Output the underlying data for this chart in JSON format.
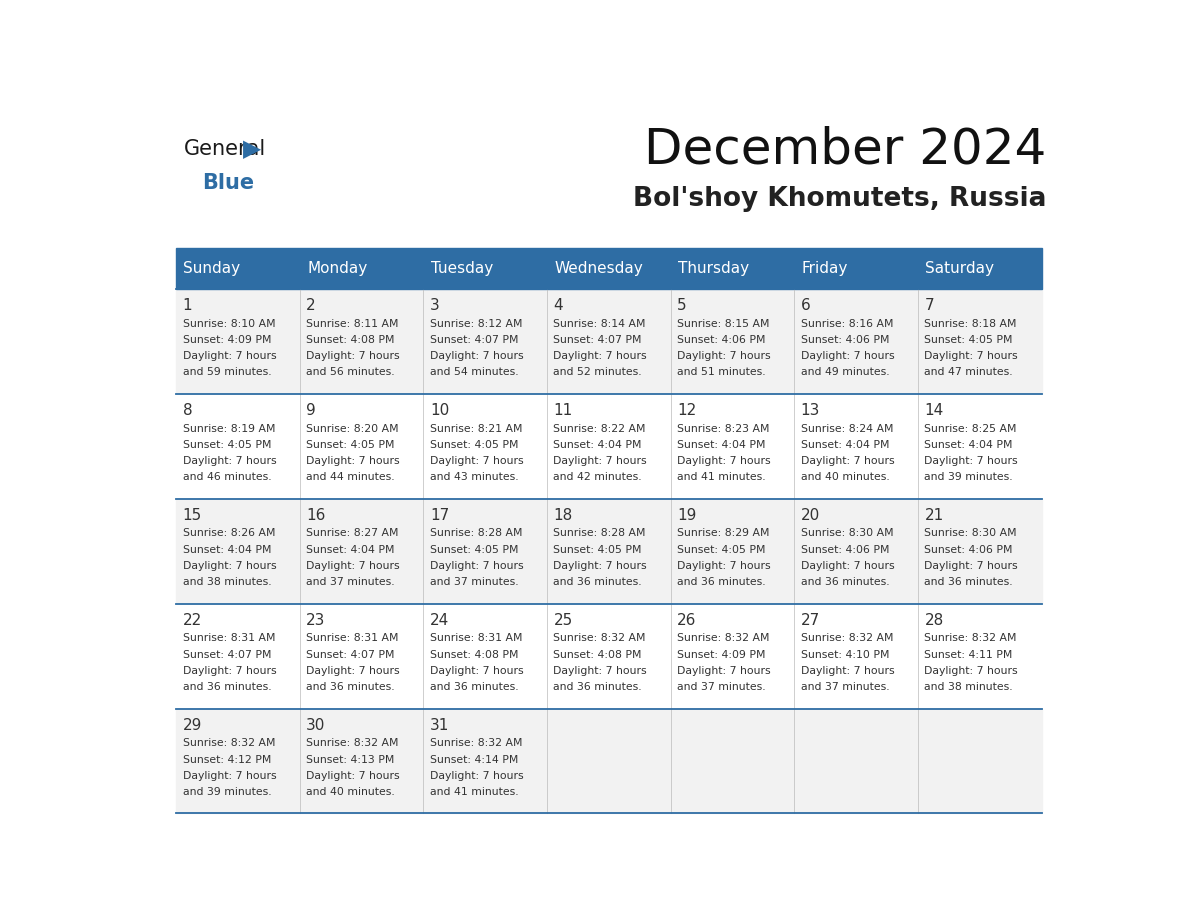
{
  "title": "December 2024",
  "subtitle": "Bol'shoy Khomutets, Russia",
  "days_of_week": [
    "Sunday",
    "Monday",
    "Tuesday",
    "Wednesday",
    "Thursday",
    "Friday",
    "Saturday"
  ],
  "header_bg": "#2E6DA4",
  "header_text": "#FFFFFF",
  "cell_bg_light": "#F2F2F2",
  "cell_bg_white": "#FFFFFF",
  "cell_text": "#333333",
  "day_num_color": "#333333",
  "line_color": "#2E6DA4",
  "logo_general_color": "#1a1a1a",
  "logo_blue_color": "#2E6DA4",
  "weeks": [
    [
      {
        "day": 1,
        "sunrise": "8:10 AM",
        "sunset": "4:09 PM",
        "dl1": "7 hours",
        "dl2": "and 59 minutes."
      },
      {
        "day": 2,
        "sunrise": "8:11 AM",
        "sunset": "4:08 PM",
        "dl1": "7 hours",
        "dl2": "and 56 minutes."
      },
      {
        "day": 3,
        "sunrise": "8:12 AM",
        "sunset": "4:07 PM",
        "dl1": "7 hours",
        "dl2": "and 54 minutes."
      },
      {
        "day": 4,
        "sunrise": "8:14 AM",
        "sunset": "4:07 PM",
        "dl1": "7 hours",
        "dl2": "and 52 minutes."
      },
      {
        "day": 5,
        "sunrise": "8:15 AM",
        "sunset": "4:06 PM",
        "dl1": "7 hours",
        "dl2": "and 51 minutes."
      },
      {
        "day": 6,
        "sunrise": "8:16 AM",
        "sunset": "4:06 PM",
        "dl1": "7 hours",
        "dl2": "and 49 minutes."
      },
      {
        "day": 7,
        "sunrise": "8:18 AM",
        "sunset": "4:05 PM",
        "dl1": "7 hours",
        "dl2": "and 47 minutes."
      }
    ],
    [
      {
        "day": 8,
        "sunrise": "8:19 AM",
        "sunset": "4:05 PM",
        "dl1": "7 hours",
        "dl2": "and 46 minutes."
      },
      {
        "day": 9,
        "sunrise": "8:20 AM",
        "sunset": "4:05 PM",
        "dl1": "7 hours",
        "dl2": "and 44 minutes."
      },
      {
        "day": 10,
        "sunrise": "8:21 AM",
        "sunset": "4:05 PM",
        "dl1": "7 hours",
        "dl2": "and 43 minutes."
      },
      {
        "day": 11,
        "sunrise": "8:22 AM",
        "sunset": "4:04 PM",
        "dl1": "7 hours",
        "dl2": "and 42 minutes."
      },
      {
        "day": 12,
        "sunrise": "8:23 AM",
        "sunset": "4:04 PM",
        "dl1": "7 hours",
        "dl2": "and 41 minutes."
      },
      {
        "day": 13,
        "sunrise": "8:24 AM",
        "sunset": "4:04 PM",
        "dl1": "7 hours",
        "dl2": "and 40 minutes."
      },
      {
        "day": 14,
        "sunrise": "8:25 AM",
        "sunset": "4:04 PM",
        "dl1": "7 hours",
        "dl2": "and 39 minutes."
      }
    ],
    [
      {
        "day": 15,
        "sunrise": "8:26 AM",
        "sunset": "4:04 PM",
        "dl1": "7 hours",
        "dl2": "and 38 minutes."
      },
      {
        "day": 16,
        "sunrise": "8:27 AM",
        "sunset": "4:04 PM",
        "dl1": "7 hours",
        "dl2": "and 37 minutes."
      },
      {
        "day": 17,
        "sunrise": "8:28 AM",
        "sunset": "4:05 PM",
        "dl1": "7 hours",
        "dl2": "and 37 minutes."
      },
      {
        "day": 18,
        "sunrise": "8:28 AM",
        "sunset": "4:05 PM",
        "dl1": "7 hours",
        "dl2": "and 36 minutes."
      },
      {
        "day": 19,
        "sunrise": "8:29 AM",
        "sunset": "4:05 PM",
        "dl1": "7 hours",
        "dl2": "and 36 minutes."
      },
      {
        "day": 20,
        "sunrise": "8:30 AM",
        "sunset": "4:06 PM",
        "dl1": "7 hours",
        "dl2": "and 36 minutes."
      },
      {
        "day": 21,
        "sunrise": "8:30 AM",
        "sunset": "4:06 PM",
        "dl1": "7 hours",
        "dl2": "and 36 minutes."
      }
    ],
    [
      {
        "day": 22,
        "sunrise": "8:31 AM",
        "sunset": "4:07 PM",
        "dl1": "7 hours",
        "dl2": "and 36 minutes."
      },
      {
        "day": 23,
        "sunrise": "8:31 AM",
        "sunset": "4:07 PM",
        "dl1": "7 hours",
        "dl2": "and 36 minutes."
      },
      {
        "day": 24,
        "sunrise": "8:31 AM",
        "sunset": "4:08 PM",
        "dl1": "7 hours",
        "dl2": "and 36 minutes."
      },
      {
        "day": 25,
        "sunrise": "8:32 AM",
        "sunset": "4:08 PM",
        "dl1": "7 hours",
        "dl2": "and 36 minutes."
      },
      {
        "day": 26,
        "sunrise": "8:32 AM",
        "sunset": "4:09 PM",
        "dl1": "7 hours",
        "dl2": "and 37 minutes."
      },
      {
        "day": 27,
        "sunrise": "8:32 AM",
        "sunset": "4:10 PM",
        "dl1": "7 hours",
        "dl2": "and 37 minutes."
      },
      {
        "day": 28,
        "sunrise": "8:32 AM",
        "sunset": "4:11 PM",
        "dl1": "7 hours",
        "dl2": "and 38 minutes."
      }
    ],
    [
      {
        "day": 29,
        "sunrise": "8:32 AM",
        "sunset": "4:12 PM",
        "dl1": "7 hours",
        "dl2": "and 39 minutes."
      },
      {
        "day": 30,
        "sunrise": "8:32 AM",
        "sunset": "4:13 PM",
        "dl1": "7 hours",
        "dl2": "and 40 minutes."
      },
      {
        "day": 31,
        "sunrise": "8:32 AM",
        "sunset": "4:14 PM",
        "dl1": "7 hours",
        "dl2": "and 41 minutes."
      },
      null,
      null,
      null,
      null
    ]
  ]
}
